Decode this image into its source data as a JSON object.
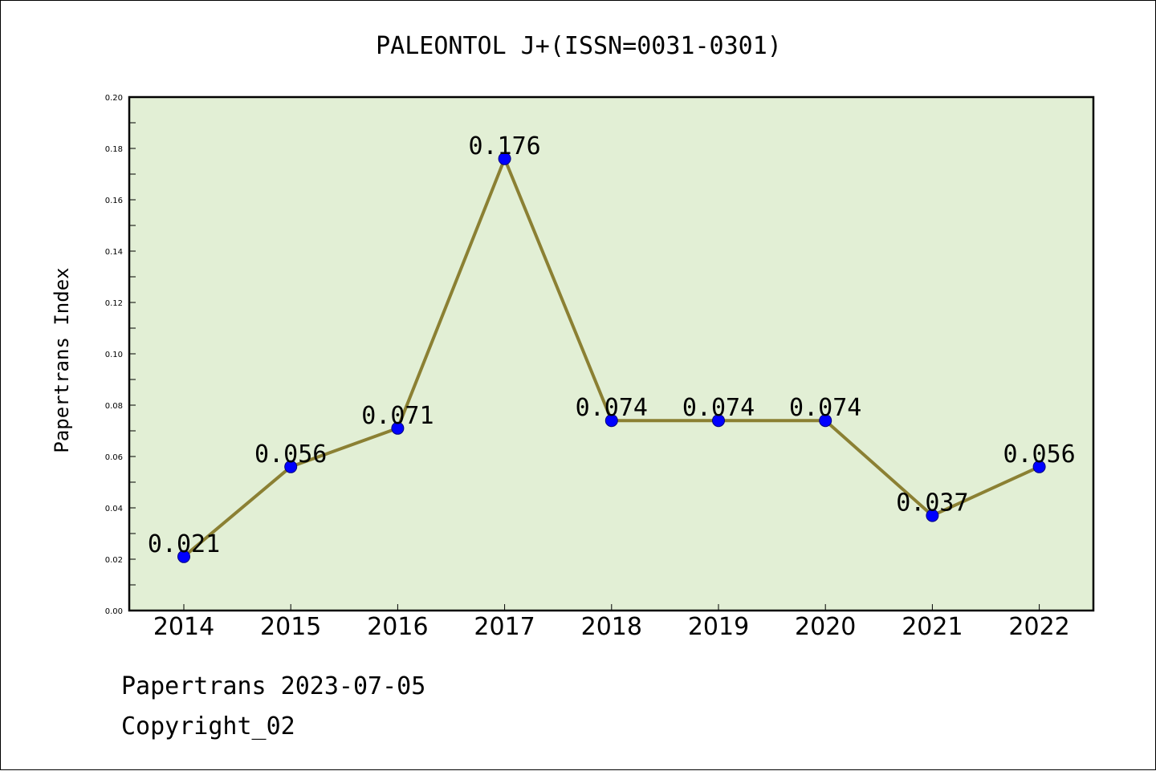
{
  "chart_data": {
    "type": "line",
    "title": "PALEONTOL J+(ISSN=0031-0301)",
    "xlabel": "",
    "ylabel": "Papertrans Index",
    "categories": [
      "2014",
      "2015",
      "2016",
      "2017",
      "2018",
      "2019",
      "2020",
      "2021",
      "2022"
    ],
    "values": [
      0.021,
      0.056,
      0.071,
      0.176,
      0.074,
      0.074,
      0.074,
      0.037,
      0.056
    ],
    "data_labels": [
      "0.021",
      "0.056",
      "0.071",
      "0.176",
      "0.074",
      "0.074",
      "0.074",
      "0.037",
      "0.056"
    ],
    "y_ticks": [
      "0.00",
      "0.02",
      "0.04",
      "0.06",
      "0.08",
      "0.10",
      "0.12",
      "0.14",
      "0.16",
      "0.18",
      "0.20"
    ],
    "ylim": [
      0,
      0.2
    ],
    "grid": false,
    "colors": {
      "plot_background": "#e2efd5",
      "line": "#8b8033",
      "marker_fill": "#0000ff",
      "marker_edge": "#000080"
    }
  },
  "footer": {
    "date_text": "Papertrans 2023-07-05",
    "copyright_text": "Copyright_02"
  }
}
